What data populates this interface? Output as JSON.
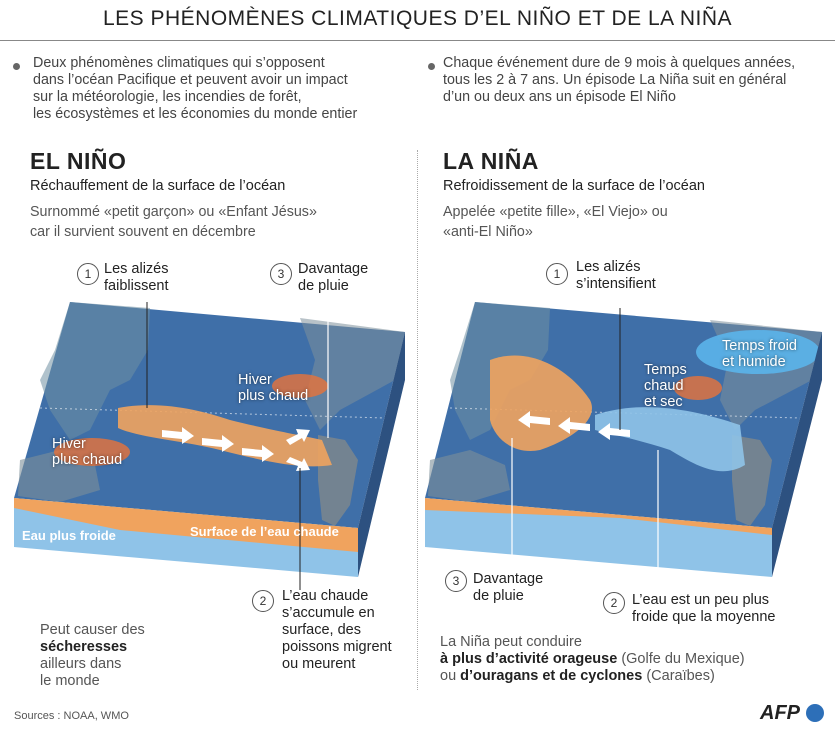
{
  "title": "LES PHÉNOMÈNES CLIMATIQUES D’EL NIÑO ET DE LA NIÑA",
  "intro": {
    "left": [
      "Deux phénomènes climatiques qui s’opposent",
      "dans l’océan Pacifique et peuvent avoir un impact",
      "sur la météorologie, les incendies de forêt,",
      "les écosystèmes et les économies du monde entier"
    ],
    "right": [
      "Chaque événement dure de 9 mois à quelques années,",
      "tous les 2 à 7 ans. Un épisode La Niña suit en général",
      "d’un ou deux ans un épisode El Niño"
    ]
  },
  "el_nino": {
    "name": "EL NIÑO",
    "subtitle": "Réchauffement de la surface de l’océan",
    "note": [
      "Surnommé «petit garçon» ou «Enfant Jésus»",
      "car il survient souvent en décembre"
    ],
    "step1": {
      "num": "1",
      "text": [
        "Les alizés",
        "faiblissent"
      ]
    },
    "step2": {
      "num": "2",
      "text": [
        "L’eau chaude",
        "s’accumule en",
        "surface, des",
        "poissons migrent",
        "ou meurent"
      ]
    },
    "step3": {
      "num": "3",
      "text": [
        "Davantage",
        "de pluie"
      ]
    },
    "winter_north": [
      "Hiver",
      "plus chaud"
    ],
    "winter_south": [
      "Hiver",
      "plus chaud"
    ],
    "layer_cold": "Eau plus froide",
    "layer_warm": "Surface de l’eau chaude",
    "footer": {
      "line1": "Peut causer des",
      "bold": "sécheresses",
      "line3": "ailleurs dans",
      "line4": "le monde"
    }
  },
  "la_nina": {
    "name": "LA NIÑA",
    "subtitle": "Refroidissement de la surface de l’océan",
    "note": [
      "Appelée «petite fille», «El Viejo» ou",
      "«anti-El Niño»"
    ],
    "step1": {
      "num": "1",
      "text": [
        "Les alizés",
        "s’intensifient"
      ]
    },
    "step2": {
      "num": "2",
      "text": [
        "L’eau est un peu plus",
        "froide que la moyenne"
      ]
    },
    "step3": {
      "num": "3",
      "text": [
        "Davantage",
        "de pluie"
      ]
    },
    "cold_wet": [
      "Temps froid",
      "et humide"
    ],
    "warm_dry": [
      "Temps",
      "chaud",
      "et sec"
    ],
    "footer": {
      "line1": "La Niña peut conduire",
      "bold1": "à plus d’activité orageuse",
      "rest1": " (Golfe du Mexique)",
      "pre2": "ou ",
      "bold2": "d’ouragans et de cyclones",
      "rest2": " (Caraïbes)"
    }
  },
  "sources": "Sources : NOAA, WMO",
  "logo": "AFP",
  "colors": {
    "ocean": "#3f6fa8",
    "warm": "#f0a35e",
    "cold": "#8fc3e8",
    "hot_spot": "#e8733a"
  }
}
